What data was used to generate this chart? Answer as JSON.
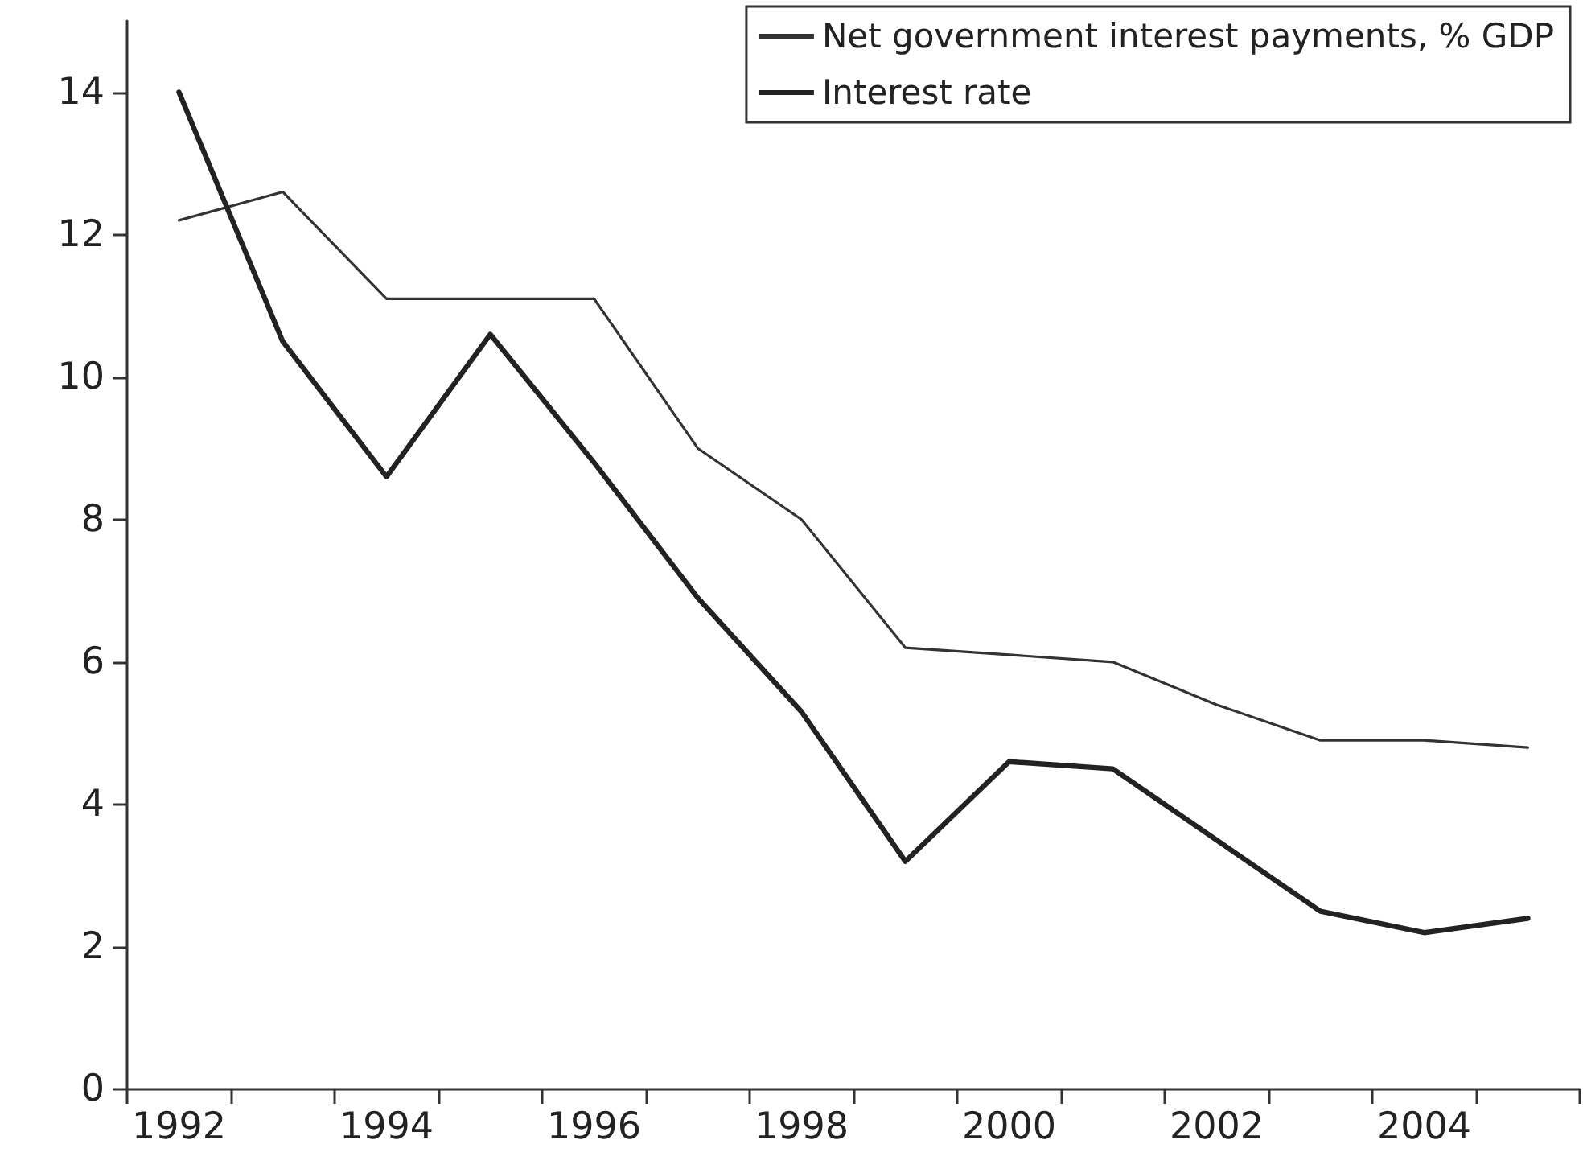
{
  "chart_data": {
    "type": "line",
    "categories": [
      "1992",
      null,
      "1994",
      null,
      "1996",
      null,
      "1998",
      null,
      "2000",
      null,
      "2002",
      null,
      "2004",
      null
    ],
    "series": [
      {
        "name": "Net government interest payments, % GDP",
        "color": "#333333",
        "line_style": "solid",
        "values": [
          12.2,
          12.6,
          11.1,
          11.1,
          11.1,
          9.0,
          8.0,
          6.2,
          6.1,
          6.0,
          5.4,
          4.9,
          4.9,
          4.8
        ]
      },
      {
        "name": "Interest rate",
        "color": "#222222",
        "line_style": "solid",
        "values": [
          14.0,
          10.5,
          8.6,
          10.6,
          8.8,
          6.9,
          5.3,
          3.2,
          4.6,
          4.5,
          3.5,
          2.5,
          2.2,
          2.4
        ]
      }
    ],
    "ylim": [
      0,
      15
    ],
    "yticks": [
      0,
      2,
      4,
      6,
      8,
      10,
      12,
      14
    ],
    "grid": false,
    "legend": "top right",
    "marker": "none"
  }
}
